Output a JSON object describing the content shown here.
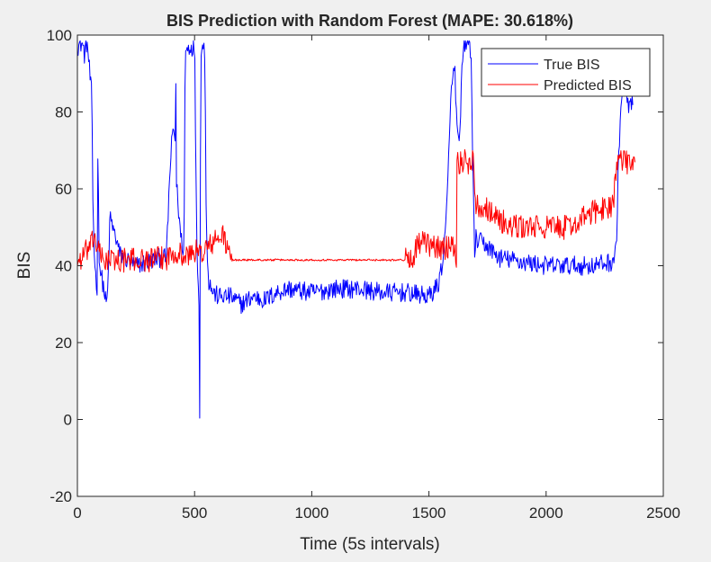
{
  "figure": {
    "background": "#f0f0f0",
    "axes_background": "#ffffff",
    "axis_color": "#262626"
  },
  "chart_data": {
    "type": "line",
    "title": "BIS Prediction with Random Forest (MAPE: 30.618%)",
    "xlabel": "Time (5s intervals)",
    "ylabel": "BIS",
    "xlim": [
      0,
      2500
    ],
    "ylim": [
      -20,
      100
    ],
    "xticks": [
      0,
      500,
      1000,
      1500,
      2000,
      2500
    ],
    "yticks": [
      -20,
      0,
      20,
      40,
      60,
      80,
      100
    ],
    "grid": false,
    "legend_position": "top-right",
    "series": [
      {
        "name": "True BIS",
        "color": "#0000ff",
        "noise": 2.5,
        "points": [
          [
            0,
            97
          ],
          [
            20,
            98
          ],
          [
            30,
            95
          ],
          [
            40,
            98
          ],
          [
            45,
            96
          ],
          [
            50,
            92
          ],
          [
            55,
            88
          ],
          [
            62,
            84
          ],
          [
            65,
            60
          ],
          [
            70,
            47
          ],
          [
            75,
            40
          ],
          [
            80,
            36
          ],
          [
            85,
            34
          ],
          [
            88,
            82
          ],
          [
            90,
            60
          ],
          [
            92,
            45
          ],
          [
            95,
            40
          ],
          [
            100,
            38
          ],
          [
            110,
            35
          ],
          [
            115,
            33
          ],
          [
            120,
            31
          ],
          [
            125,
            30
          ],
          [
            130,
            34
          ],
          [
            135,
            45
          ],
          [
            140,
            53
          ],
          [
            150,
            50
          ],
          [
            160,
            48
          ],
          [
            170,
            46
          ],
          [
            180,
            43
          ],
          [
            200,
            42
          ],
          [
            250,
            40
          ],
          [
            300,
            41
          ],
          [
            350,
            42
          ],
          [
            380,
            42
          ],
          [
            390,
            58
          ],
          [
            400,
            70
          ],
          [
            410,
            76
          ],
          [
            418,
            72
          ],
          [
            420,
            88
          ],
          [
            422,
            62
          ],
          [
            440,
            48
          ],
          [
            455,
            43
          ],
          [
            460,
            96
          ],
          [
            480,
            97
          ],
          [
            500,
            97
          ],
          [
            510,
            45
          ],
          [
            520,
            30
          ],
          [
            522,
            -1
          ],
          [
            524,
            42
          ],
          [
            526,
            97
          ],
          [
            540,
            97
          ],
          [
            545,
            90
          ],
          [
            550,
            50
          ],
          [
            560,
            36
          ],
          [
            580,
            33
          ],
          [
            600,
            32
          ],
          [
            650,
            32
          ],
          [
            700,
            30
          ],
          [
            750,
            32
          ],
          [
            800,
            31
          ],
          [
            850,
            33
          ],
          [
            900,
            34
          ],
          [
            1000,
            33
          ],
          [
            1100,
            34
          ],
          [
            1200,
            34
          ],
          [
            1300,
            33
          ],
          [
            1400,
            33
          ],
          [
            1500,
            32
          ],
          [
            1540,
            35
          ],
          [
            1560,
            42
          ],
          [
            1570,
            48
          ],
          [
            1580,
            60
          ],
          [
            1590,
            80
          ],
          [
            1600,
            88
          ],
          [
            1610,
            92
          ],
          [
            1620,
            75
          ],
          [
            1630,
            70
          ],
          [
            1640,
            90
          ],
          [
            1650,
            98
          ],
          [
            1660,
            98
          ],
          [
            1675,
            98
          ],
          [
            1680,
            92
          ],
          [
            1690,
            60
          ],
          [
            1695,
            40
          ],
          [
            1700,
            47
          ],
          [
            1750,
            45
          ],
          [
            1800,
            42
          ],
          [
            1900,
            41
          ],
          [
            2000,
            40
          ],
          [
            2100,
            40
          ],
          [
            2200,
            40
          ],
          [
            2280,
            41
          ],
          [
            2290,
            42
          ],
          [
            2300,
            45
          ],
          [
            2310,
            70
          ],
          [
            2320,
            82
          ],
          [
            2330,
            88
          ],
          [
            2340,
            84
          ],
          [
            2350,
            82
          ],
          [
            2370,
            82
          ]
        ]
      },
      {
        "name": "Predicted BIS",
        "color": "#ff0000",
        "noise": 3.2,
        "points": [
          [
            0,
            41
          ],
          [
            20,
            42
          ],
          [
            40,
            44
          ],
          [
            60,
            45
          ],
          [
            70,
            48
          ],
          [
            80,
            46
          ],
          [
            100,
            42
          ],
          [
            120,
            41.5
          ],
          [
            200,
            41.5
          ],
          [
            300,
            41.5
          ],
          [
            380,
            42
          ],
          [
            400,
            43
          ],
          [
            420,
            44
          ],
          [
            440,
            43
          ],
          [
            460,
            42
          ],
          [
            480,
            43
          ],
          [
            500,
            44
          ],
          [
            520,
            43
          ],
          [
            540,
            44
          ],
          [
            560,
            45
          ],
          [
            580,
            46
          ],
          [
            600,
            47
          ],
          [
            620,
            48
          ],
          [
            640,
            45
          ],
          [
            650,
            42
          ],
          [
            660,
            41.5
          ],
          [
            800,
            41.5
          ],
          [
            1000,
            41.5
          ],
          [
            1200,
            41.5
          ],
          [
            1400,
            41.5
          ],
          [
            1430,
            42
          ],
          [
            1440,
            44
          ],
          [
            1460,
            46
          ],
          [
            1480,
            46
          ],
          [
            1500,
            45
          ],
          [
            1520,
            45
          ],
          [
            1540,
            45
          ],
          [
            1560,
            44
          ],
          [
            1580,
            45
          ],
          [
            1600,
            47
          ],
          [
            1610,
            44
          ],
          [
            1618,
            42
          ],
          [
            1620,
            67
          ],
          [
            1660,
            67
          ],
          [
            1690,
            67
          ],
          [
            1700,
            56
          ],
          [
            1750,
            55
          ],
          [
            1800,
            52
          ],
          [
            1850,
            50
          ],
          [
            1900,
            50
          ],
          [
            1950,
            50
          ],
          [
            2000,
            50
          ],
          [
            2050,
            50
          ],
          [
            2100,
            50
          ],
          [
            2150,
            52
          ],
          [
            2200,
            54
          ],
          [
            2250,
            55
          ],
          [
            2280,
            56
          ],
          [
            2290,
            58
          ],
          [
            2300,
            67
          ],
          [
            2340,
            67
          ],
          [
            2380,
            67
          ]
        ]
      }
    ]
  }
}
